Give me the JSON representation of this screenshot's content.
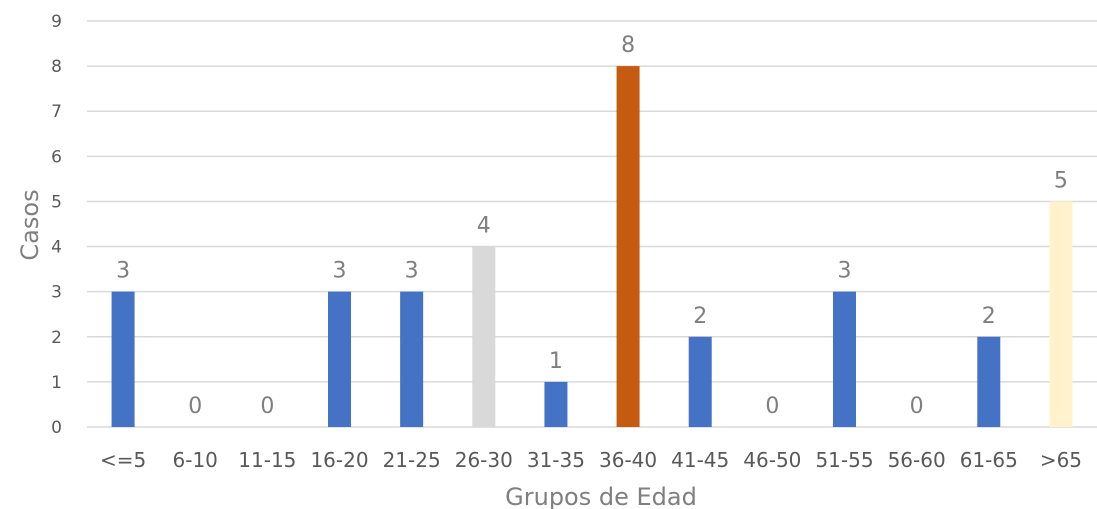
{
  "chart_data": {
    "type": "bar",
    "title": "",
    "xlabel": "Grupos de Edad",
    "ylabel": "Casos",
    "ylim": [
      0,
      9
    ],
    "yticks": [
      0,
      1,
      2,
      3,
      4,
      5,
      6,
      7,
      8,
      9
    ],
    "grid": true,
    "legend": "none",
    "categories": [
      "<=5",
      "6-10",
      "11-15",
      "16-20",
      "21-25",
      "26-30",
      "31-35",
      "36-40",
      "41-45",
      "46-50",
      "51-55",
      "56-60",
      "61-65",
      ">65"
    ],
    "values": [
      3,
      0,
      0,
      3,
      3,
      4,
      1,
      8,
      2,
      0,
      3,
      0,
      2,
      5
    ],
    "bar_colors": [
      "#4472c4",
      "#4472c4",
      "#4472c4",
      "#4472c4",
      "#4472c4",
      "#d9d9d9",
      "#4472c4",
      "#c55a11",
      "#4472c4",
      "#4472c4",
      "#4472c4",
      "#4472c4",
      "#4472c4",
      "#fff2cc"
    ]
  }
}
